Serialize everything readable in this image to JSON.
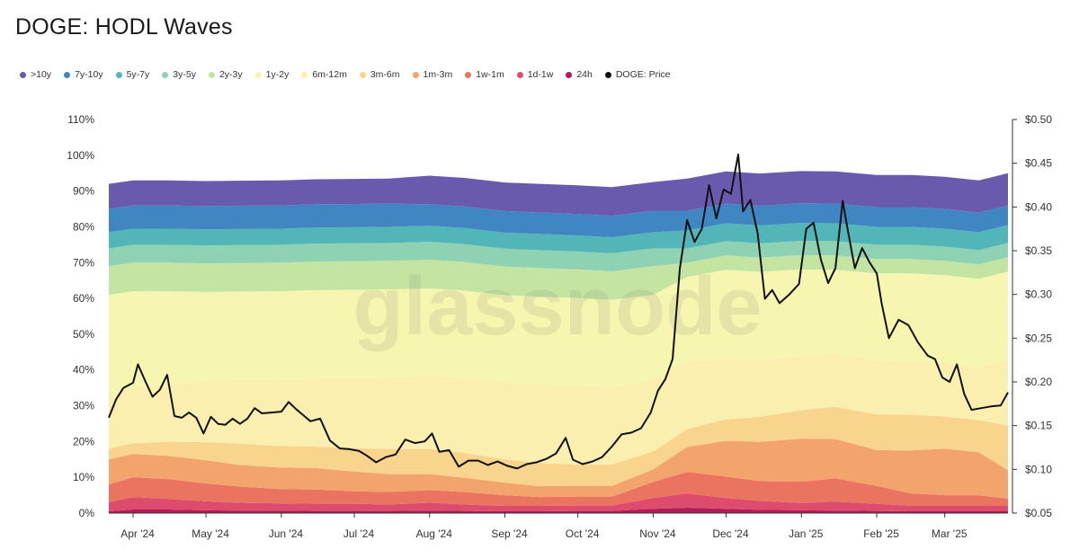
{
  "title": "DOGE: HODL Waves",
  "watermark": "glassnode",
  "legend": [
    {
      "label": ">10y",
      "color": "#6a5aae"
    },
    {
      "label": "7y-10y",
      "color": "#3f86c2"
    },
    {
      "label": "5y-7y",
      "color": "#52b5b8"
    },
    {
      "label": "3y-5y",
      "color": "#8fd1b3"
    },
    {
      "label": "2y-3y",
      "color": "#c4e5a1"
    },
    {
      "label": "1y-2y",
      "color": "#f6f6b0"
    },
    {
      "label": "6m-12m",
      "color": "#fbefb0"
    },
    {
      "label": "3m-6m",
      "color": "#f8d48c"
    },
    {
      "label": "1m-3m",
      "color": "#f2a46c"
    },
    {
      "label": "1w-1m",
      "color": "#ea7460"
    },
    {
      "label": "1d-1w",
      "color": "#dd4c6c"
    },
    {
      "label": "24h",
      "color": "#b01b58"
    },
    {
      "label": "DOGE: Price",
      "color": "#111111"
    }
  ],
  "chart_data": {
    "type": "area",
    "title": "DOGE: HODL Waves",
    "x": [
      "2024-03-22",
      "2024-04-01",
      "2024-04-15",
      "2024-05-01",
      "2024-05-15",
      "2024-06-01",
      "2024-06-15",
      "2024-07-01",
      "2024-07-15",
      "2024-08-01",
      "2024-08-15",
      "2024-09-01",
      "2024-09-15",
      "2024-10-01",
      "2024-10-15",
      "2024-11-01",
      "2024-11-15",
      "2024-12-01",
      "2024-12-15",
      "2025-01-01",
      "2025-01-15",
      "2025-02-01",
      "2025-02-15",
      "2025-03-01",
      "2025-03-15",
      "2025-03-27"
    ],
    "x_ticks": [
      "Apr '24",
      "May '24",
      "Jun '24",
      "Jul '24",
      "Aug '24",
      "Sep '24",
      "Oct '24",
      "Nov '24",
      "Dec '24",
      "Jan '25",
      "Feb '25",
      "Mar '25"
    ],
    "y_left": {
      "ticks": [
        "0%",
        "10%",
        "20%",
        "30%",
        "40%",
        "50%",
        "60%",
        "70%",
        "80%",
        "90%",
        "100%",
        "110%"
      ],
      "ylim": [
        0,
        110
      ]
    },
    "y_right": {
      "ticks": [
        "$0.05",
        "$0.10",
        "$0.15",
        "$0.20",
        "$0.25",
        "$0.30",
        "$0.35",
        "$0.40",
        "$0.45",
        "$0.50"
      ],
      "ylim": [
        0.05,
        0.5
      ]
    },
    "bands_stacked_percent": [
      {
        "name": "24h",
        "values": [
          0.5,
          1,
          1,
          0.8,
          0.7,
          0.7,
          0.6,
          0.6,
          0.6,
          0.7,
          0.6,
          0.5,
          0.5,
          0.6,
          0.6,
          1.2,
          1.5,
          1.2,
          0.9,
          0.8,
          0.7,
          0.6,
          0.5,
          0.5,
          0.5,
          0.5
        ]
      },
      {
        "name": "1d-1w",
        "values": [
          2.5,
          3.5,
          3,
          2.5,
          2.2,
          2,
          2,
          2,
          1.8,
          2.2,
          1.8,
          1.5,
          1.5,
          1.5,
          1.5,
          3,
          4,
          3,
          2.5,
          2,
          2.5,
          2,
          1.5,
          1.5,
          1.5,
          1.5
        ]
      },
      {
        "name": "1w-1m",
        "values": [
          5,
          5.5,
          5.5,
          5,
          4.5,
          4,
          4,
          3.5,
          3.5,
          3.5,
          3.5,
          3,
          2.5,
          2.5,
          2.5,
          4.5,
          6,
          6,
          5.5,
          6,
          6.5,
          5,
          3.5,
          3,
          3,
          2
        ]
      },
      {
        "name": "1m-3m",
        "values": [
          7,
          6.5,
          6.5,
          6.5,
          6,
          6,
          6,
          5.5,
          5,
          4.5,
          4,
          3.5,
          3,
          3,
          3,
          3.5,
          7,
          10,
          11,
          12,
          11,
          10,
          12,
          13,
          12,
          8
        ]
      },
      {
        "name": "3m-6m",
        "values": [
          3,
          3,
          4,
          5,
          6,
          6,
          6,
          6.5,
          7,
          7,
          7,
          6.5,
          6.5,
          6,
          6,
          5,
          5,
          6,
          7,
          8,
          9,
          10,
          10,
          9,
          9,
          12.5
        ]
      },
      {
        "name": "6m-12m",
        "values": [
          15,
          15.5,
          16,
          17,
          18,
          18.5,
          19,
          19.5,
          20,
          20.5,
          21,
          21.5,
          22,
          22,
          21.5,
          20,
          19,
          17,
          16,
          15,
          15,
          15,
          15,
          15,
          14.5,
          18.5
        ]
      },
      {
        "name": "1y-2y",
        "values": [
          28,
          27,
          26,
          25,
          24.5,
          24.8,
          24.7,
          24.8,
          24.6,
          24.4,
          24.3,
          24.4,
          24.5,
          24.5,
          24.5,
          23.8,
          23.5,
          24.8,
          24.5,
          24.3,
          23.3,
          24.4,
          24.5,
          24.5,
          25,
          24.5
        ]
      },
      {
        "name": "2y-3y",
        "values": [
          8,
          8,
          8,
          8,
          8,
          8,
          8,
          8,
          8,
          8,
          8,
          8,
          8,
          8,
          8,
          8,
          4,
          4,
          4,
          4,
          4,
          4,
          4,
          4,
          4,
          4
        ]
      },
      {
        "name": "3y-5y",
        "values": [
          5,
          5,
          5,
          5,
          5,
          5,
          5,
          5,
          5,
          5,
          5,
          5,
          5,
          5,
          5,
          5,
          4,
          4,
          4,
          4,
          4,
          4,
          4,
          4,
          4,
          4
        ]
      },
      {
        "name": "5y-7y",
        "values": [
          4.5,
          4.5,
          4.5,
          4.5,
          4.5,
          4.5,
          4.5,
          4.5,
          4.5,
          4.5,
          4.5,
          4.5,
          4.5,
          4.5,
          4.5,
          4.5,
          5,
          5,
          5,
          5,
          5,
          5,
          5,
          5,
          5,
          5
        ]
      },
      {
        "name": "7y-10y",
        "values": [
          6.5,
          6.5,
          6.5,
          6.5,
          6.5,
          6.5,
          6.5,
          6.5,
          6.5,
          6,
          6,
          6,
          6,
          6,
          6,
          6,
          5.5,
          5.5,
          5.5,
          5.5,
          5.5,
          5.5,
          5.5,
          5.5,
          5.5,
          5.5
        ]
      },
      {
        "name": ">10y",
        "values": [
          7,
          7,
          7,
          7,
          7,
          7,
          7,
          7,
          7,
          8,
          8,
          8,
          8,
          8,
          8,
          8,
          9,
          9,
          9,
          9,
          9,
          9,
          9,
          9,
          9,
          9
        ]
      }
    ],
    "price_series": {
      "name": "DOGE: Price",
      "x": [
        "2024-03-22",
        "2024-03-25",
        "2024-03-28",
        "2024-04-01",
        "2024-04-03",
        "2024-04-06",
        "2024-04-09",
        "2024-04-12",
        "2024-04-15",
        "2024-04-18",
        "2024-04-21",
        "2024-04-24",
        "2024-04-27",
        "2024-04-30",
        "2024-05-03",
        "2024-05-06",
        "2024-05-09",
        "2024-05-12",
        "2024-05-15",
        "2024-05-18",
        "2024-05-21",
        "2024-05-24",
        "2024-05-28",
        "2024-06-01",
        "2024-06-04",
        "2024-06-07",
        "2024-06-10",
        "2024-06-13",
        "2024-06-17",
        "2024-06-21",
        "2024-06-25",
        "2024-06-29",
        "2024-07-03",
        "2024-07-06",
        "2024-07-10",
        "2024-07-14",
        "2024-07-18",
        "2024-07-22",
        "2024-07-26",
        "2024-07-30",
        "2024-08-02",
        "2024-08-05",
        "2024-08-09",
        "2024-08-13",
        "2024-08-17",
        "2024-08-21",
        "2024-08-25",
        "2024-08-29",
        "2024-09-02",
        "2024-09-06",
        "2024-09-10",
        "2024-09-14",
        "2024-09-18",
        "2024-09-22",
        "2024-09-26",
        "2024-09-29",
        "2024-10-03",
        "2024-10-07",
        "2024-10-11",
        "2024-10-15",
        "2024-10-19",
        "2024-10-23",
        "2024-10-27",
        "2024-10-31",
        "2024-11-03",
        "2024-11-06",
        "2024-11-09",
        "2024-11-12",
        "2024-11-15",
        "2024-11-18",
        "2024-11-21",
        "2024-11-24",
        "2024-11-27",
        "2024-11-30",
        "2024-12-03",
        "2024-12-06",
        "2024-12-08",
        "2024-12-11",
        "2024-12-14",
        "2024-12-17",
        "2024-12-20",
        "2024-12-23",
        "2024-12-27",
        "2024-12-31",
        "2025-01-03",
        "2025-01-06",
        "2025-01-09",
        "2025-01-12",
        "2025-01-15",
        "2025-01-18",
        "2025-01-20",
        "2025-01-23",
        "2025-01-26",
        "2025-01-29",
        "2025-02-01",
        "2025-02-03",
        "2025-02-06",
        "2025-02-10",
        "2025-02-14",
        "2025-02-18",
        "2025-02-22",
        "2025-02-25",
        "2025-02-28",
        "2025-03-03",
        "2025-03-06",
        "2025-03-09",
        "2025-03-12",
        "2025-03-16",
        "2025-03-20",
        "2025-03-24",
        "2025-03-27"
      ],
      "values": [
        0.159,
        0.18,
        0.193,
        0.199,
        0.22,
        0.201,
        0.183,
        0.191,
        0.208,
        0.161,
        0.159,
        0.165,
        0.159,
        0.141,
        0.16,
        0.152,
        0.151,
        0.158,
        0.152,
        0.158,
        0.17,
        0.164,
        0.165,
        0.166,
        0.177,
        0.169,
        0.162,
        0.155,
        0.158,
        0.133,
        0.124,
        0.123,
        0.121,
        0.116,
        0.108,
        0.114,
        0.117,
        0.134,
        0.13,
        0.132,
        0.141,
        0.12,
        0.122,
        0.103,
        0.11,
        0.11,
        0.105,
        0.109,
        0.104,
        0.101,
        0.106,
        0.108,
        0.112,
        0.118,
        0.136,
        0.111,
        0.106,
        0.109,
        0.114,
        0.126,
        0.14,
        0.142,
        0.147,
        0.165,
        0.19,
        0.203,
        0.226,
        0.33,
        0.385,
        0.36,
        0.375,
        0.425,
        0.387,
        0.42,
        0.415,
        0.46,
        0.395,
        0.408,
        0.37,
        0.295,
        0.305,
        0.29,
        0.3,
        0.312,
        0.375,
        0.382,
        0.34,
        0.313,
        0.33,
        0.407,
        0.375,
        0.33,
        0.353,
        0.337,
        0.324,
        0.29,
        0.25,
        0.271,
        0.265,
        0.245,
        0.23,
        0.226,
        0.205,
        0.2,
        0.22,
        0.186,
        0.168,
        0.17,
        0.172,
        0.173,
        0.188
      ]
    }
  }
}
